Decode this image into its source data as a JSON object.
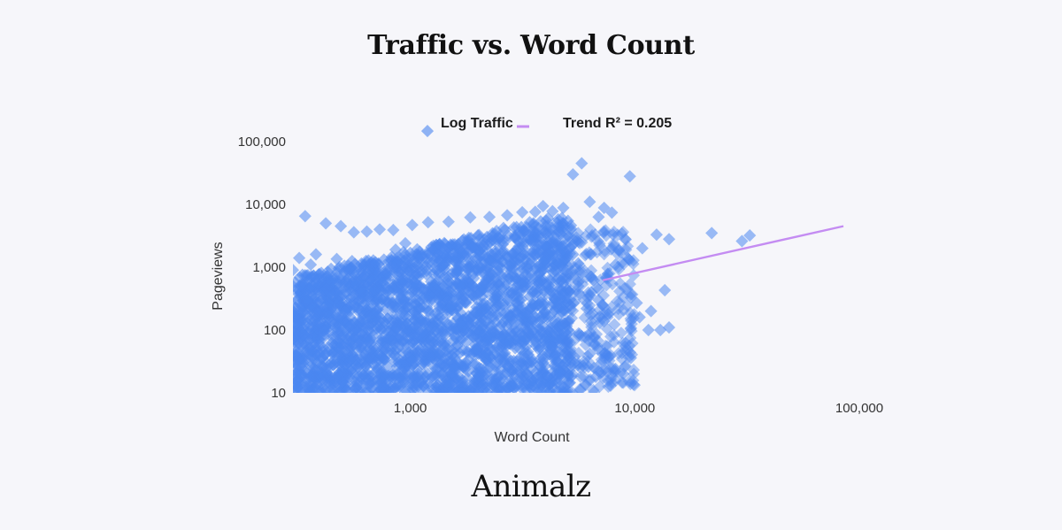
{
  "chart_data": {
    "type": "scatter",
    "title": "Traffic vs. Word Count",
    "xlabel": "Word Count",
    "ylabel": "Pageviews",
    "x_scale": "log",
    "y_scale": "log",
    "xlim": [
      300,
      100000
    ],
    "ylim": [
      10,
      100000
    ],
    "x_ticks": [
      {
        "value": 1000,
        "label": "1,000"
      },
      {
        "value": 10000,
        "label": "10,000"
      },
      {
        "value": 100000,
        "label": "100,000"
      }
    ],
    "y_ticks": [
      {
        "value": 10,
        "label": "10"
      },
      {
        "value": 100,
        "label": "100"
      },
      {
        "value": 1000,
        "label": "1,000"
      },
      {
        "value": 10000,
        "label": "10,000"
      },
      {
        "value": 100000,
        "label": "100,000"
      }
    ],
    "grid": false,
    "legend_position": "top-center",
    "series": [
      {
        "name": "Log Traffic",
        "marker": "diamond",
        "color": "#4a86f0",
        "points": [
          [
            340,
            6500
          ],
          [
            420,
            5000
          ],
          [
            490,
            4500
          ],
          [
            560,
            3600
          ],
          [
            640,
            3700
          ],
          [
            730,
            4000
          ],
          [
            840,
            3900
          ],
          [
            1020,
            4700
          ],
          [
            1200,
            5200
          ],
          [
            1480,
            5300
          ],
          [
            1850,
            6200
          ],
          [
            2250,
            6300
          ],
          [
            2700,
            6700
          ],
          [
            3150,
            7500
          ],
          [
            3600,
            7600
          ],
          [
            4300,
            7800
          ],
          [
            4800,
            8800
          ],
          [
            3900,
            9400
          ],
          [
            5800,
            45000
          ],
          [
            5300,
            30000
          ],
          [
            9500,
            28000
          ],
          [
            6300,
            11000
          ],
          [
            7300,
            8800
          ],
          [
            6900,
            6300
          ],
          [
            7900,
            7400
          ],
          [
            8000,
            3300
          ],
          [
            8500,
            1900
          ],
          [
            10800,
            2000
          ],
          [
            12500,
            3300
          ],
          [
            14200,
            2800
          ],
          [
            22000,
            3500
          ],
          [
            30000,
            2600
          ],
          [
            32500,
            3200
          ],
          [
            8200,
            1100
          ],
          [
            9400,
            1350
          ],
          [
            13600,
            430
          ],
          [
            10500,
            160
          ],
          [
            11500,
            100
          ],
          [
            13000,
            100
          ],
          [
            14200,
            110
          ],
          [
            10200,
            270
          ],
          [
            9600,
            330
          ],
          [
            11800,
            200
          ],
          [
            9100,
            62
          ],
          [
            7400,
            40
          ],
          [
            8200,
            24
          ],
          [
            7800,
            13
          ],
          [
            6200,
            26
          ],
          [
            6700,
            18
          ],
          [
            5700,
            11
          ],
          [
            4700,
            13
          ],
          [
            4100,
            10
          ],
          [
            3700,
            11
          ],
          [
            3200,
            12
          ],
          [
            6600,
            60
          ],
          [
            7000,
            130
          ],
          [
            6100,
            220
          ],
          [
            5600,
            500
          ],
          [
            6400,
            700
          ],
          [
            8900,
            20
          ],
          [
            5000,
            20
          ],
          [
            9600,
            36
          ],
          [
            300,
            900
          ],
          [
            300,
            500
          ],
          [
            300,
            200
          ],
          [
            305,
            90
          ],
          [
            300,
            40
          ],
          [
            310,
            20
          ],
          [
            300,
            12
          ],
          [
            320,
            1400
          ],
          [
            360,
            1100
          ],
          [
            380,
            12
          ],
          [
            450,
            10
          ],
          [
            520,
            11
          ],
          [
            600,
            10
          ],
          [
            800,
            10
          ],
          [
            1000,
            10
          ],
          [
            1300,
            10
          ],
          [
            1700,
            10
          ],
          [
            2200,
            10
          ],
          [
            2600,
            12
          ],
          [
            380,
            1600
          ],
          [
            470,
            1350
          ],
          [
            550,
            1250
          ],
          [
            700,
            1200
          ],
          [
            860,
            1900
          ],
          [
            950,
            2400
          ],
          [
            2000,
            3200
          ],
          [
            2600,
            4200
          ],
          [
            3400,
            5200
          ],
          [
            4100,
            6000
          ],
          [
            5200,
            4100
          ],
          [
            5300,
            1600
          ],
          [
            5600,
            1150
          ],
          [
            6400,
            400
          ],
          [
            6900,
            300
          ],
          [
            7200,
            250
          ],
          [
            7600,
            180
          ],
          [
            5800,
            80
          ],
          [
            6300,
            42
          ],
          [
            7100,
            30
          ],
          [
            5600,
            29
          ],
          [
            6900,
            22
          ]
        ]
      }
    ],
    "trend": {
      "name": "Trend R² = 0.205",
      "color": "#c48cf2",
      "from": [
        7200,
        620
      ],
      "to": [
        100000,
        4500
      ]
    }
  },
  "legend": {
    "series_label": "Log Traffic",
    "trend_label": "Trend R² = 0.205"
  },
  "brand": "Animalz"
}
